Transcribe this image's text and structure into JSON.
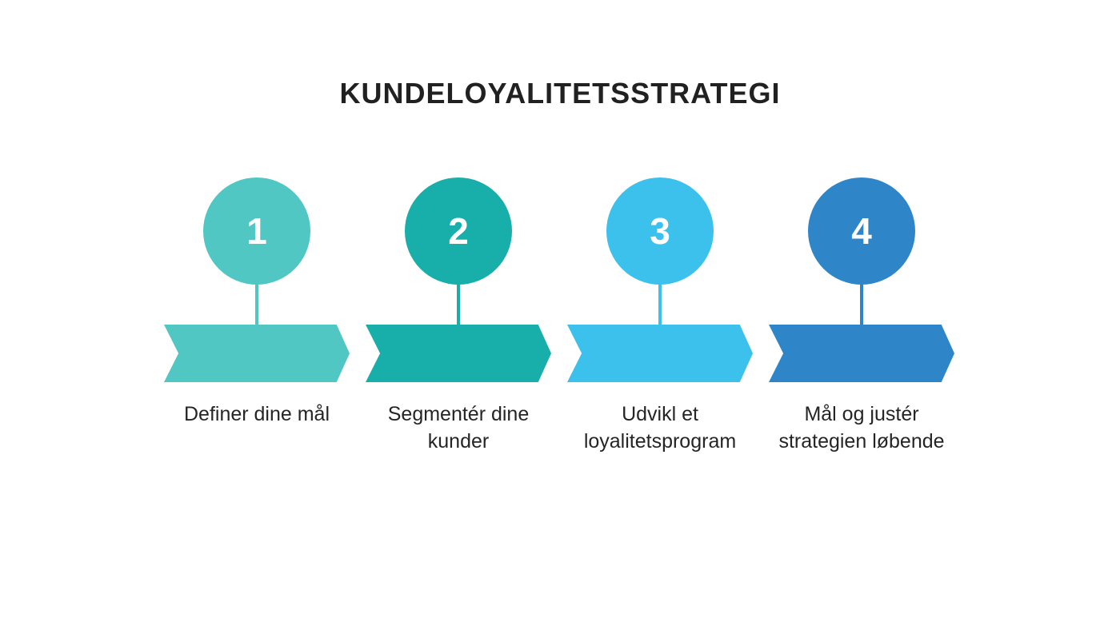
{
  "title": "KUNDELOYALITETSSTRATEGI",
  "background_color": "#FFFFFF",
  "title_color": "#212121",
  "label_text_color": "#252525",
  "number_text_color": "#FFFFFF",
  "steps": [
    {
      "number": "1",
      "color": "#50C7C3",
      "label_lines": [
        "Definer dine mål"
      ]
    },
    {
      "number": "2",
      "color": "#18AEA9",
      "label_lines": [
        "Segmentér dine",
        "kunder"
      ]
    },
    {
      "number": "3",
      "color": "#3CC1ED",
      "label_lines": [
        "Udvikl et",
        "loyalitetsprogram"
      ]
    },
    {
      "number": "4",
      "color": "#2E86C9",
      "label_lines": [
        "Mål og justér",
        "strategien løbende"
      ]
    }
  ]
}
